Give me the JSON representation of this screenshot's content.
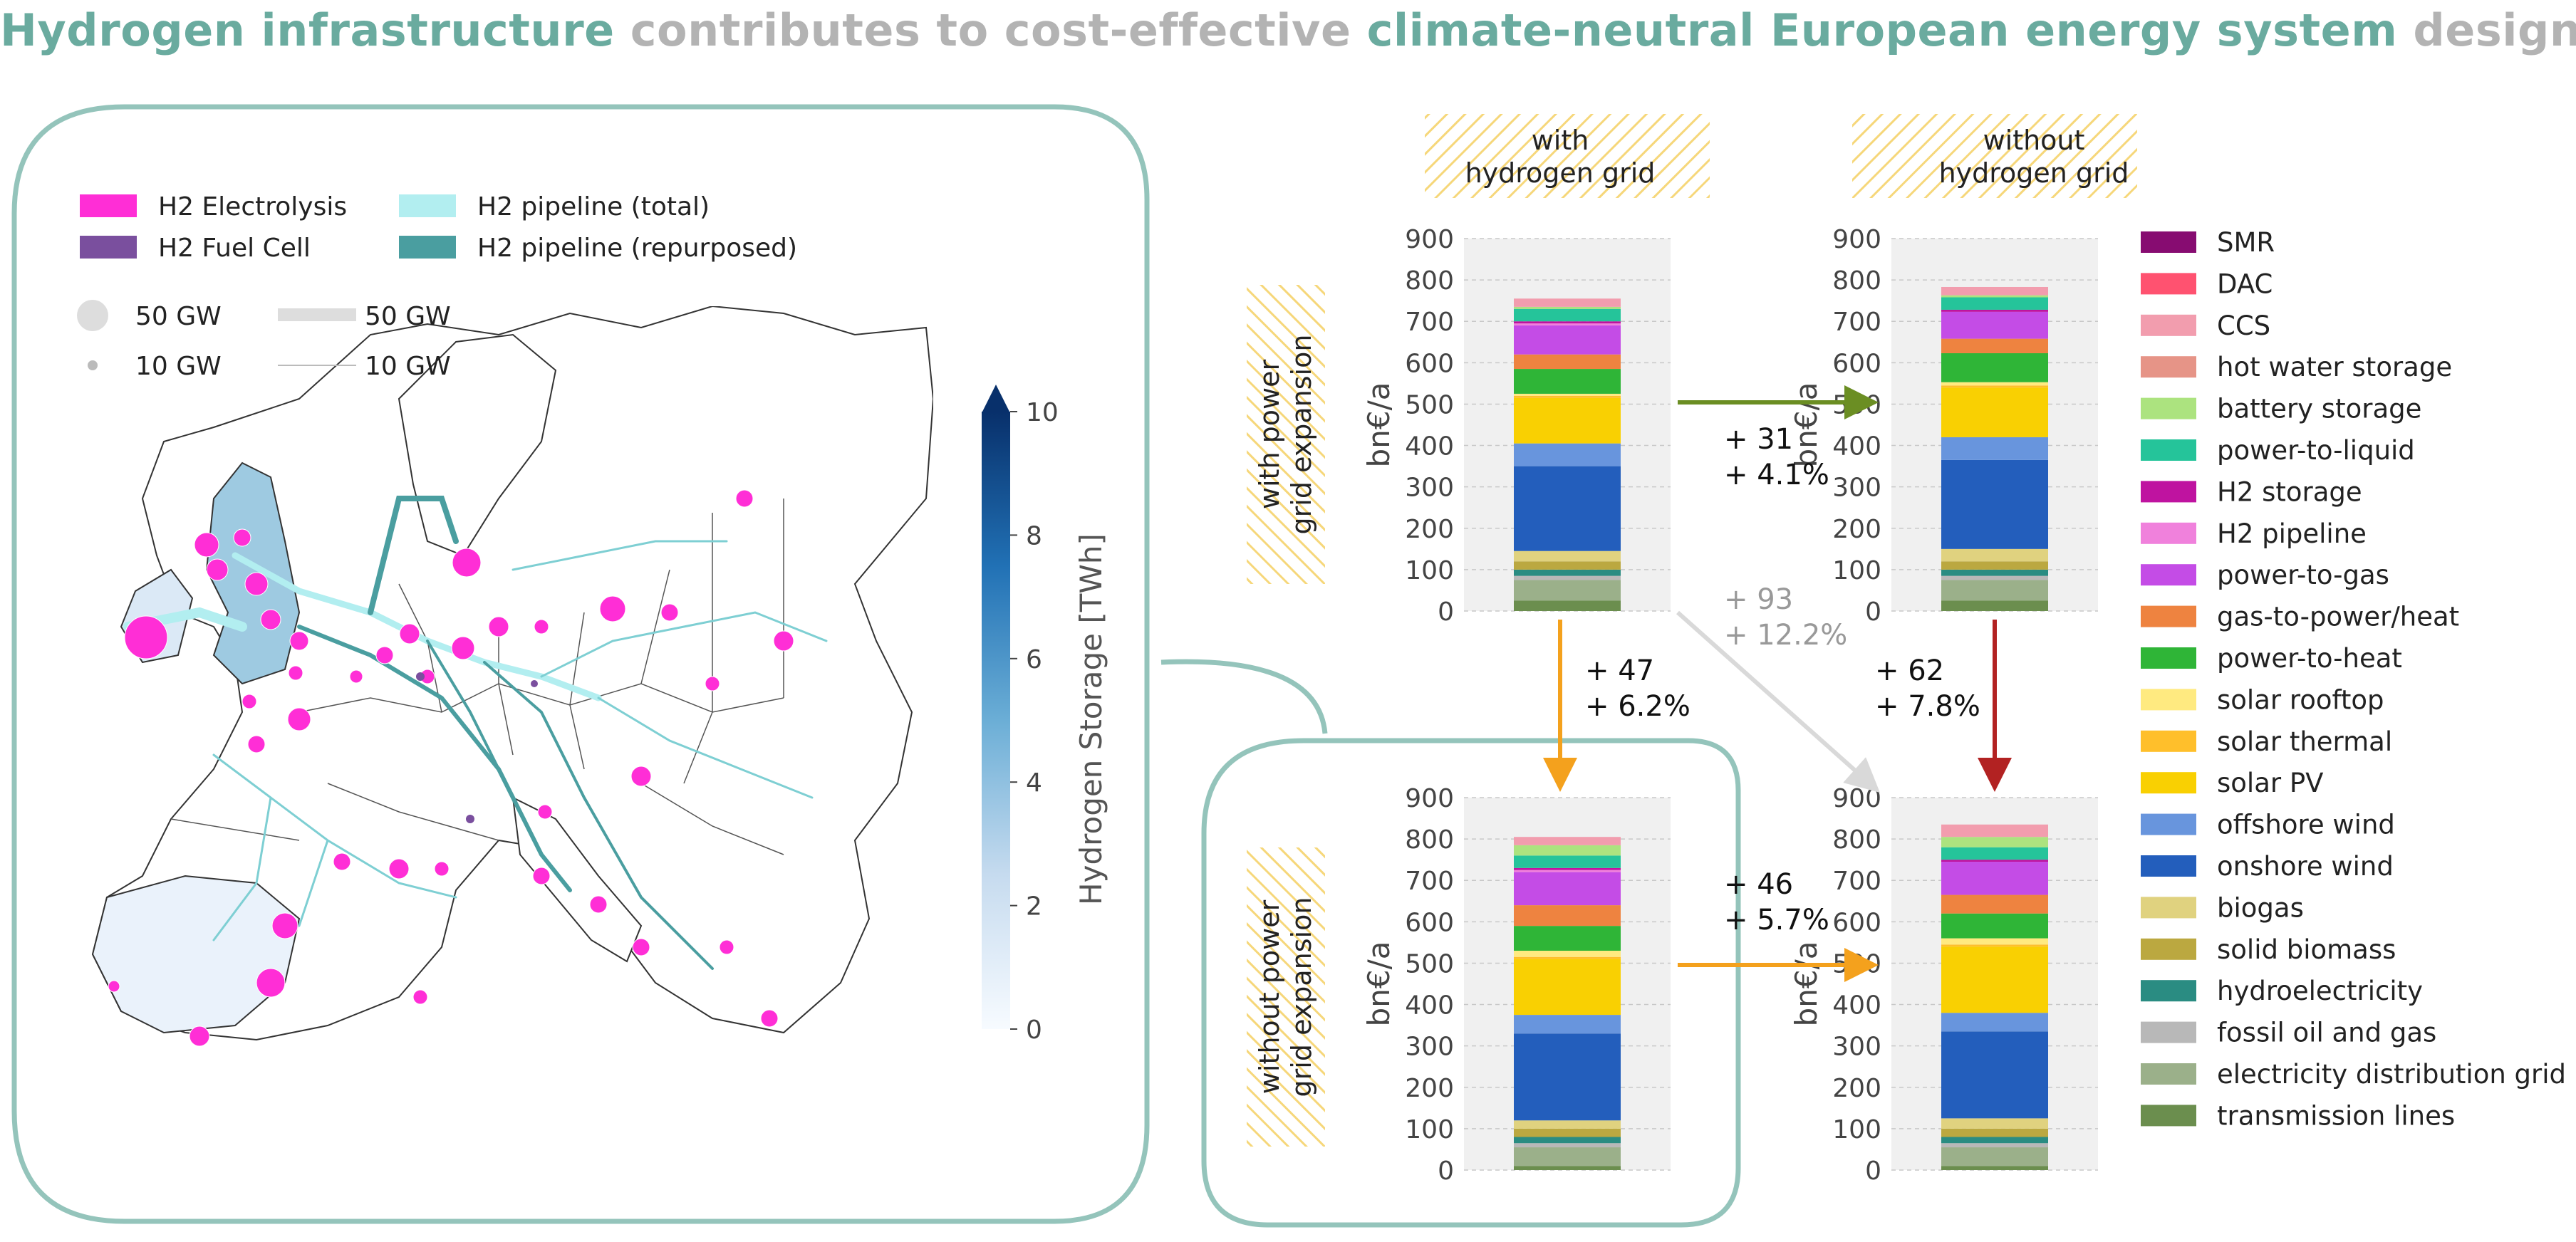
{
  "title": {
    "part1": "Hydrogen infrastructure",
    "part2": " contributes to cost-effective ",
    "part3": "climate-neutral European energy system",
    "part4": " designs."
  },
  "colors": {
    "accent": "#6aab9f",
    "gray_text": "#b3b3b3",
    "hatch": "#f6d77a",
    "arrow_green": "#6b8e23",
    "arrow_orange": "#f4a11d",
    "arrow_red": "#b22222",
    "arrow_gray": "#d9d9d9"
  },
  "map": {
    "legend": {
      "electrolysis": "H2 Electrolysis",
      "fuel_cell": "H2 Fuel Cell",
      "pipe_total": "H2 pipeline (total)",
      "pipe_repurposed": "H2 pipeline (repurposed)",
      "bubble_big": "50 GW",
      "bubble_small": "10 GW",
      "line_big": "50 GW",
      "line_small": "10 GW"
    },
    "colorbar": {
      "label": "Hydrogen Storage [TWh]",
      "ticks": [
        "0",
        "2",
        "4",
        "6",
        "8",
        "10"
      ],
      "min": 0,
      "max": 10
    }
  },
  "headers": {
    "col1_line1": "with",
    "col1_line2": "hydrogen grid",
    "col2_line1": "without",
    "col2_line2": "hydrogen grid",
    "row1_line1": "with power",
    "row1_line2": "grid expansion",
    "row2_line1": "without power",
    "row2_line2": "grid expansion"
  },
  "arrows": {
    "right_top": {
      "line1": "+ 31",
      "line2": "+ 4.1%"
    },
    "down_left": {
      "line1": "+ 47",
      "line2": "+ 6.2%"
    },
    "diagonal": {
      "line1": "+ 93",
      "line2": "+ 12.2%"
    },
    "down_right": {
      "line1": "+ 62",
      "line2": "+ 7.8%"
    },
    "right_bottom": {
      "line1": "+ 46",
      "line2": "+ 5.7%"
    }
  },
  "chart_data": {
    "type": "bar",
    "stacked": true,
    "ylabel": "bn€/a",
    "ylim": [
      0,
      900
    ],
    "yticks": [
      0,
      100,
      200,
      300,
      400,
      500,
      600,
      700,
      800,
      900
    ],
    "grid": true,
    "legend_position": "right",
    "categories": [
      "with hydrogen grid / with power grid expansion",
      "without hydrogen grid / with power grid expansion",
      "with hydrogen grid / without power grid expansion",
      "without hydrogen grid / without power grid expansion"
    ],
    "series": [
      {
        "name": "transmission lines",
        "color": "#6b8e4e",
        "values": [
          25,
          25,
          10,
          10
        ]
      },
      {
        "name": "electricity distribution grid",
        "color": "#9bb08a",
        "values": [
          50,
          50,
          45,
          45
        ]
      },
      {
        "name": "fossil oil and gas",
        "color": "#b8b8b8",
        "values": [
          10,
          10,
          10,
          10
        ]
      },
      {
        "name": "hydroelectricity",
        "color": "#2a8c82",
        "values": [
          15,
          15,
          15,
          15
        ]
      },
      {
        "name": "solid biomass",
        "color": "#bba840",
        "values": [
          20,
          20,
          20,
          20
        ]
      },
      {
        "name": "biogas",
        "color": "#e0d27f",
        "values": [
          25,
          30,
          20,
          25
        ]
      },
      {
        "name": "onshore wind",
        "color": "#235ebc",
        "values": [
          205,
          215,
          210,
          210
        ]
      },
      {
        "name": "offshore wind",
        "color": "#6895dd",
        "values": [
          55,
          55,
          45,
          45
        ]
      },
      {
        "name": "solar PV",
        "color": "#f9d002",
        "values": [
          110,
          120,
          135,
          160
        ]
      },
      {
        "name": "solar thermal",
        "color": "#ffbf2b",
        "values": [
          5,
          5,
          5,
          5
        ]
      },
      {
        "name": "solar rooftop",
        "color": "#ffea80",
        "values": [
          5,
          8,
          15,
          15
        ]
      },
      {
        "name": "power-to-heat",
        "color": "#2fb537",
        "values": [
          60,
          70,
          60,
          60
        ]
      },
      {
        "name": "gas-to-power/heat",
        "color": "#ee8340",
        "values": [
          35,
          35,
          50,
          45
        ]
      },
      {
        "name": "power-to-gas",
        "color": "#c44ce6",
        "values": [
          70,
          65,
          80,
          80
        ]
      },
      {
        "name": "H2 pipeline",
        "color": "#f081dc",
        "values": [
          5,
          0,
          5,
          0
        ]
      },
      {
        "name": "H2 storage",
        "color": "#bf13a0",
        "values": [
          5,
          5,
          5,
          5
        ]
      },
      {
        "name": "power-to-liquid",
        "color": "#25c49a",
        "values": [
          30,
          30,
          30,
          30
        ]
      },
      {
        "name": "battery storage",
        "color": "#ace37f",
        "values": [
          5,
          5,
          25,
          25
        ]
      },
      {
        "name": "hot water storage",
        "color": "#e69487",
        "values": [
          0,
          0,
          0,
          0
        ]
      },
      {
        "name": "CCS",
        "color": "#f29dae",
        "values": [
          20,
          20,
          20,
          30
        ]
      },
      {
        "name": "DAC",
        "color": "#ff5270",
        "values": [
          0,
          0,
          0,
          0
        ]
      },
      {
        "name": "SMR",
        "color": "#870c71",
        "values": [
          0,
          0,
          0,
          0
        ]
      }
    ],
    "totals": [
      760,
      791,
      807,
      853
    ]
  }
}
